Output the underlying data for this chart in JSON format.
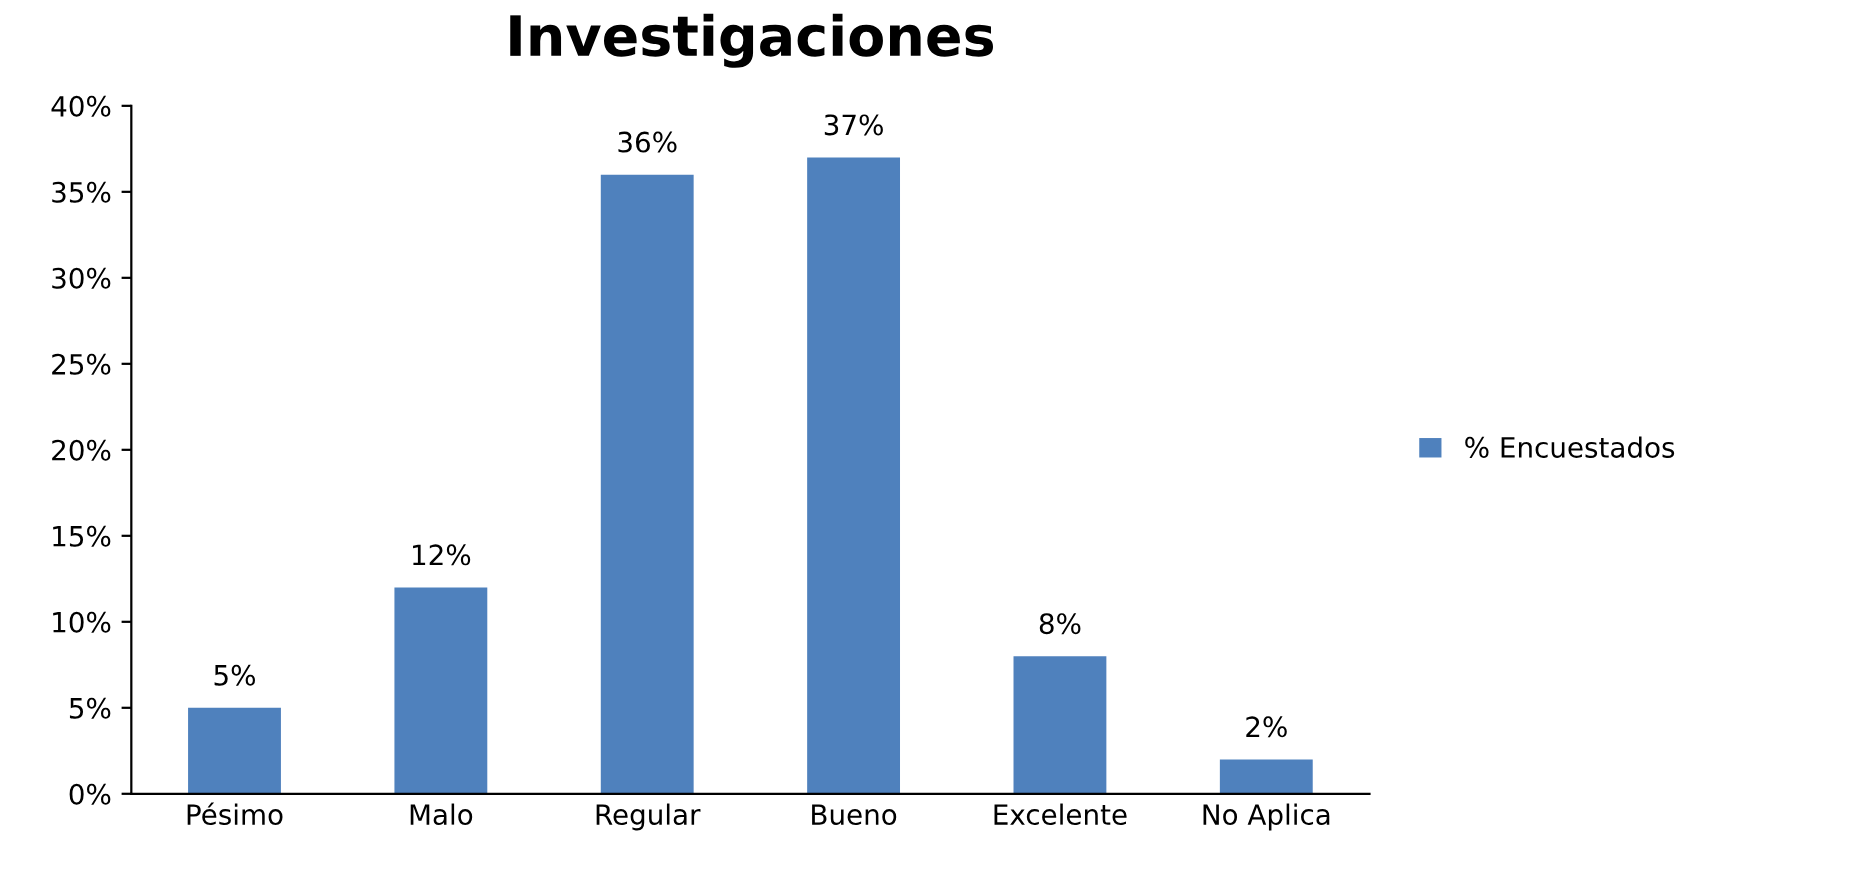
{
  "chart_data": {
    "type": "bar",
    "title": "Investigaciones",
    "categories": [
      "Pésimo",
      "Malo",
      "Regular",
      "Bueno",
      "Excelente",
      "No Aplica"
    ],
    "series": [
      {
        "name": "% Encuestados",
        "color": "#4f81bd",
        "values": [
          5,
          12,
          36,
          37,
          8,
          2
        ]
      }
    ],
    "value_labels": [
      "5%",
      "12%",
      "36%",
      "37%",
      "8%",
      "2%"
    ],
    "ylim": [
      0,
      40
    ],
    "yticks": [
      {
        "value": 0,
        "label": "0%"
      },
      {
        "value": 5,
        "label": "5%"
      },
      {
        "value": 10,
        "label": "10%"
      },
      {
        "value": 15,
        "label": "15%"
      },
      {
        "value": 20,
        "label": "20%"
      },
      {
        "value": 25,
        "label": "25%"
      },
      {
        "value": 30,
        "label": "30%"
      },
      {
        "value": 35,
        "label": "35%"
      },
      {
        "value": 40,
        "label": "40%"
      }
    ],
    "grid": false,
    "legend": "right"
  }
}
